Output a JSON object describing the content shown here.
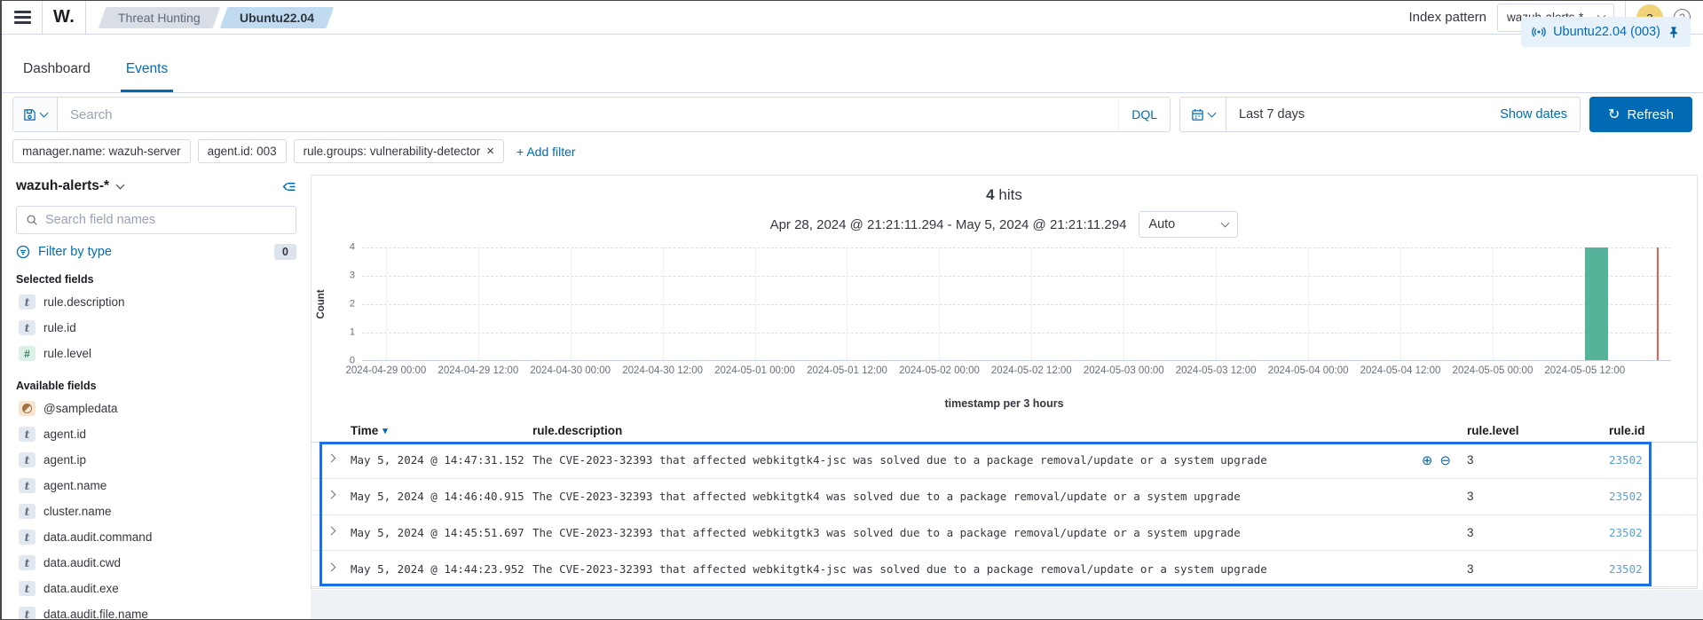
{
  "topbar": {
    "logo": "W.",
    "breadcrumbs": [
      {
        "label": "Threat Hunting",
        "active": false
      },
      {
        "label": "Ubuntu22.04",
        "active": true
      }
    ],
    "index_pattern_label": "Index pattern",
    "index_pattern_value": "wazuh-alerts-*",
    "avatar_initial": "a",
    "help_glyph": "?"
  },
  "tabs": {
    "items": [
      {
        "label": "Dashboard",
        "active": false
      },
      {
        "label": "Events",
        "active": true
      }
    ],
    "agent_button_label": "Ubuntu22.04 (003)"
  },
  "search": {
    "placeholder": "Search",
    "dql_label": "DQL",
    "time_range": "Last 7 days",
    "show_dates_label": "Show dates",
    "refresh_label": "Refresh",
    "refresh_glyph": "↻"
  },
  "filters": {
    "chips": [
      {
        "label": "manager.name: wazuh-server",
        "closable": false
      },
      {
        "label": "agent.id: 003",
        "closable": false
      },
      {
        "label": "rule.groups: vulnerability-detector",
        "closable": true
      }
    ],
    "add_filter_label": "+ Add filter"
  },
  "sidebar": {
    "index_pattern": "wazuh-alerts-*",
    "field_search_placeholder": "Search field names",
    "filter_by_type_label": "Filter by type",
    "filter_count": "0",
    "selected_label": "Selected fields",
    "available_label": "Available fields",
    "selected_fields": [
      {
        "name": "rule.description",
        "type": "text"
      },
      {
        "name": "rule.id",
        "type": "text"
      },
      {
        "name": "rule.level",
        "type": "number"
      }
    ],
    "available_fields": [
      {
        "name": "@sampledata",
        "type": "date"
      },
      {
        "name": "agent.id",
        "type": "text"
      },
      {
        "name": "agent.ip",
        "type": "text"
      },
      {
        "name": "agent.name",
        "type": "text"
      },
      {
        "name": "cluster.name",
        "type": "text"
      },
      {
        "name": "data.audit.command",
        "type": "text"
      },
      {
        "name": "data.audit.cwd",
        "type": "text"
      },
      {
        "name": "data.audit.exe",
        "type": "text"
      },
      {
        "name": "data.audit.file.name",
        "type": "text"
      }
    ]
  },
  "chart_data": {
    "type": "bar",
    "hits_count": "4",
    "hits_label": "hits",
    "subtitle": "Apr 28, 2024 @ 21:21:11.294 - May 5, 2024 @ 21:21:11.294",
    "interval_value": "Auto",
    "xlabel": "timestamp per 3 hours",
    "ylabel": "Count",
    "ylim": [
      0,
      4
    ],
    "yticks": [
      0,
      1,
      2,
      3,
      4
    ],
    "x_domain": [
      "2024-04-28 21:21:11.294",
      "2024-05-05 21:21:11.294"
    ],
    "bucket_interval": "3 hours",
    "grid": "on",
    "legend": "off",
    "xticks": [
      {
        "label": "2024-04-29 00:00",
        "pos": 0.0182
      },
      {
        "label": "2024-04-29 12:00",
        "pos": 0.0887
      },
      {
        "label": "2024-04-30 00:00",
        "pos": 0.1591
      },
      {
        "label": "2024-04-30 12:00",
        "pos": 0.2296
      },
      {
        "label": "2024-05-01 00:00",
        "pos": 0.3
      },
      {
        "label": "2024-05-01 12:00",
        "pos": 0.3705
      },
      {
        "label": "2024-05-02 00:00",
        "pos": 0.441
      },
      {
        "label": "2024-05-02 12:00",
        "pos": 0.5114
      },
      {
        "label": "2024-05-03 00:00",
        "pos": 0.5819
      },
      {
        "label": "2024-05-03 12:00",
        "pos": 0.6523
      },
      {
        "label": "2024-05-04 00:00",
        "pos": 0.7228
      },
      {
        "label": "2024-05-04 12:00",
        "pos": 0.7932
      },
      {
        "label": "2024-05-05 00:00",
        "pos": 0.8637
      },
      {
        "label": "2024-05-05 12:00",
        "pos": 0.9341
      }
    ],
    "bars": [
      {
        "x": "2024-05-05 12:00",
        "count": 4,
        "pos": 0.9341,
        "width": 0.0176
      }
    ],
    "now_marker_pos": 0.9891,
    "bar_color": "#54B399",
    "marker_color": "#E0614F"
  },
  "table": {
    "columns": [
      "Time",
      "rule.description",
      "rule.level",
      "rule.id"
    ],
    "rows": [
      {
        "time": "May 5, 2024 @ 14:47:31.152",
        "description": "The CVE-2023-32393 that affected webkitgtk4-jsc was solved due to a package removal/update or a system upgrade",
        "level": "3",
        "id": "23502",
        "hover_icons": true
      },
      {
        "time": "May 5, 2024 @ 14:46:40.915",
        "description": "The CVE-2023-32393 that affected webkitgtk4 was solved due to a package removal/update or a system upgrade",
        "level": "3",
        "id": "23502",
        "hover_icons": false
      },
      {
        "time": "May 5, 2024 @ 14:45:51.697",
        "description": "The CVE-2023-32393 that affected webkitgtk3 was solved due to a package removal/update or a system upgrade",
        "level": "3",
        "id": "23502",
        "hover_icons": false
      },
      {
        "time": "May 5, 2024 @ 14:44:23.952",
        "description": "The CVE-2023-32393 that affected webkitgtk4-jsc was solved due to a package removal/update or a system upgrade",
        "level": "3",
        "id": "23502",
        "hover_icons": false
      }
    ]
  },
  "colors": {
    "accent": "#006BB4",
    "id_link": "#5B9FD6",
    "highlight_border": "#1A6FE8",
    "bar_green": "#54B399",
    "now_red": "#E0614F",
    "avatar_yellow": "#F0D279"
  }
}
